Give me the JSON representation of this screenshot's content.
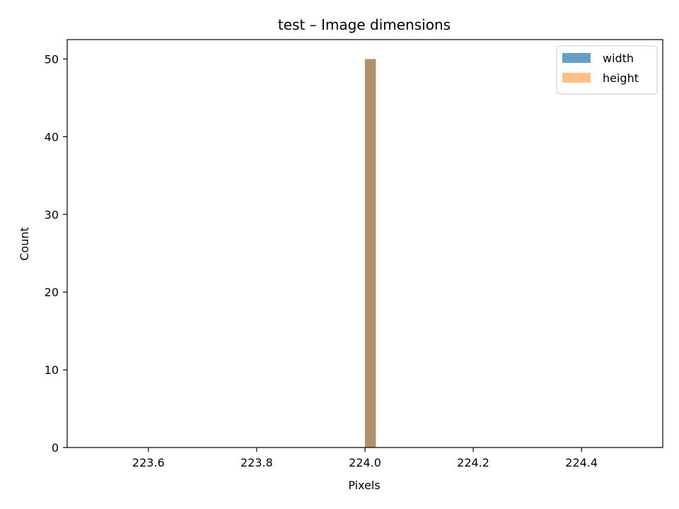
{
  "chart_data": {
    "type": "bar",
    "title": "test – Image dimensions",
    "xlabel": "Pixels",
    "ylabel": "Count",
    "xlim": [
      223.45,
      224.55
    ],
    "ylim": [
      0,
      52.5
    ],
    "xticks": [
      223.6,
      223.8,
      224.0,
      224.2,
      224.4
    ],
    "xtick_labels": [
      "223.6",
      "223.8",
      "224.0",
      "224.2",
      "224.4"
    ],
    "yticks": [
      0,
      10,
      20,
      30,
      40,
      50
    ],
    "ytick_labels": [
      "0",
      "10",
      "20",
      "30",
      "40",
      "50"
    ],
    "grid": false,
    "legend_position": "top-right",
    "series": [
      {
        "name": "width",
        "color": "#1f77b4",
        "opacity": 0.7,
        "bins": [
          {
            "x0": 224.0,
            "x1": 224.02,
            "count": 50
          }
        ]
      },
      {
        "name": "height",
        "color": "#ff7f0e",
        "opacity": 0.5,
        "bins": [
          {
            "x0": 224.0,
            "x1": 224.02,
            "count": 50
          }
        ]
      }
    ]
  }
}
